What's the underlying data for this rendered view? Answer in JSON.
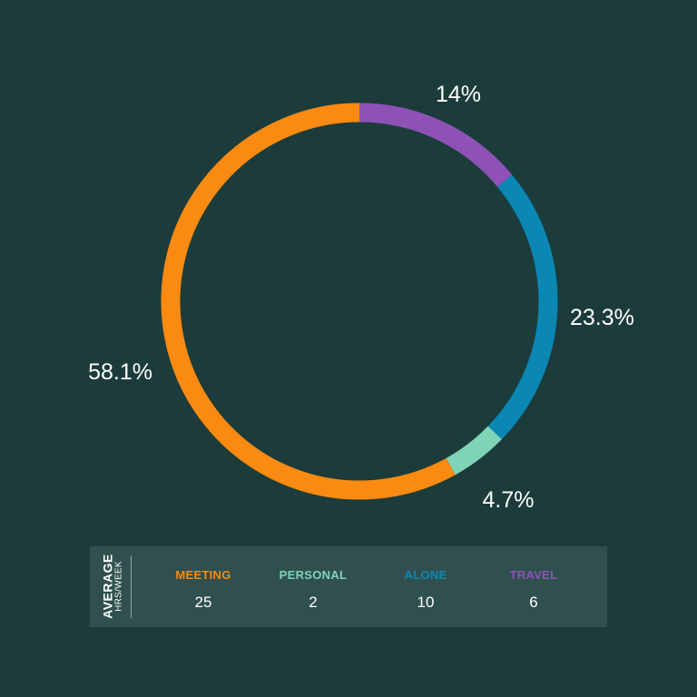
{
  "chart_data": {
    "type": "pie",
    "style": "donut",
    "slices": [
      {
        "label": "TRAVEL",
        "percent_label": "14%",
        "value": 14,
        "color": "#8e52b6"
      },
      {
        "label": "ALONE",
        "percent_label": "23.3%",
        "value": 23.3,
        "color": "#0b87b4"
      },
      {
        "label": "PERSONAL",
        "percent_label": "4.7%",
        "value": 4.7,
        "color": "#7fd3b7"
      },
      {
        "label": "MEETING",
        "percent_label": "58.1%",
        "value": 58.1,
        "color": "#fa8a12"
      }
    ],
    "start": "top",
    "direction": "clockwise"
  },
  "summary": {
    "title": "AVERAGE",
    "unit": "HRS/WEEK",
    "columns": [
      {
        "label": "MEETING",
        "value": "25",
        "color": "#fa8a12"
      },
      {
        "label": "PERSONAL",
        "value": "2",
        "color": "#7fd3b7"
      },
      {
        "label": "ALONE",
        "value": "10",
        "color": "#0b87b4"
      },
      {
        "label": "TRAVEL",
        "value": "6",
        "color": "#8e52b6"
      }
    ]
  }
}
